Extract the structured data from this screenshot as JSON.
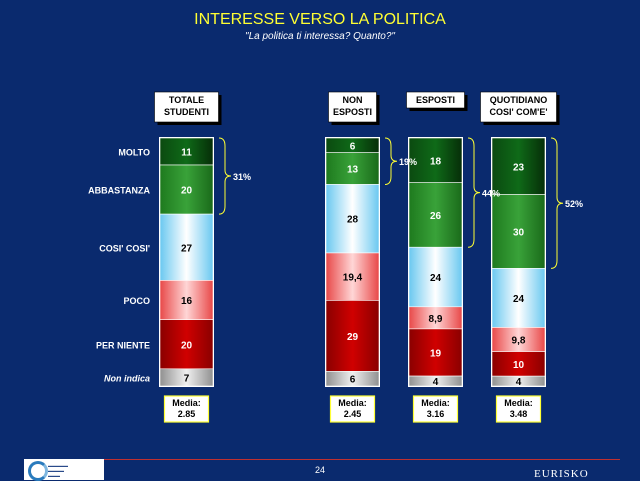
{
  "title": "INTERESSE VERSO LA POLITICA",
  "subtitle": "\"La politica ti interessa? Quanto?\"",
  "page_number": "24",
  "logo_right": "EURISKO",
  "colors": {
    "background": "#0a2a6e",
    "title": "#ffff33",
    "brace": "#ffff33",
    "molto": "#0b4a10",
    "abbastanza": "#2a8a2a",
    "cosi": "#cfefff",
    "poco": "#f07070",
    "per_niente": "#b00000",
    "non_indica": "#bdbdbd"
  },
  "chart_data": {
    "type": "bar",
    "stacked": true,
    "categories": [
      "TOTALE STUDENTI",
      "NON ESPOSTI",
      "ESPOSTI",
      "QUOTIDIANO COSI' COM'E'"
    ],
    "series": [
      {
        "name": "MOLTO",
        "values": [
          11,
          6,
          18,
          23
        ]
      },
      {
        "name": "ABBASTANZA",
        "values": [
          20,
          13,
          26,
          30
        ]
      },
      {
        "name": "COSI' COSI'",
        "values": [
          27,
          28,
          24,
          24
        ]
      },
      {
        "name": "POCO",
        "values": [
          16,
          19.4,
          8.9,
          9.8
        ]
      },
      {
        "name": "PER NIENTE",
        "values": [
          20,
          29,
          19,
          10
        ]
      },
      {
        "name": "Non indica",
        "values": [
          7,
          6,
          4,
          4
        ]
      }
    ],
    "data_labels": [
      [
        "11",
        "20",
        "27",
        "16",
        "20",
        "7"
      ],
      [
        "6",
        "13",
        "28",
        "19,4",
        "29",
        "6"
      ],
      [
        "18",
        "26",
        "24",
        "8,9",
        "19",
        "4"
      ],
      [
        "23",
        "30",
        "24",
        "9,8",
        "10",
        "4"
      ]
    ],
    "brace_labels": [
      "31%",
      "19%",
      "44%",
      "52%"
    ],
    "media_prefix": "Media:",
    "media": [
      "2.85",
      "2.45",
      "3.16",
      "3.48"
    ]
  }
}
